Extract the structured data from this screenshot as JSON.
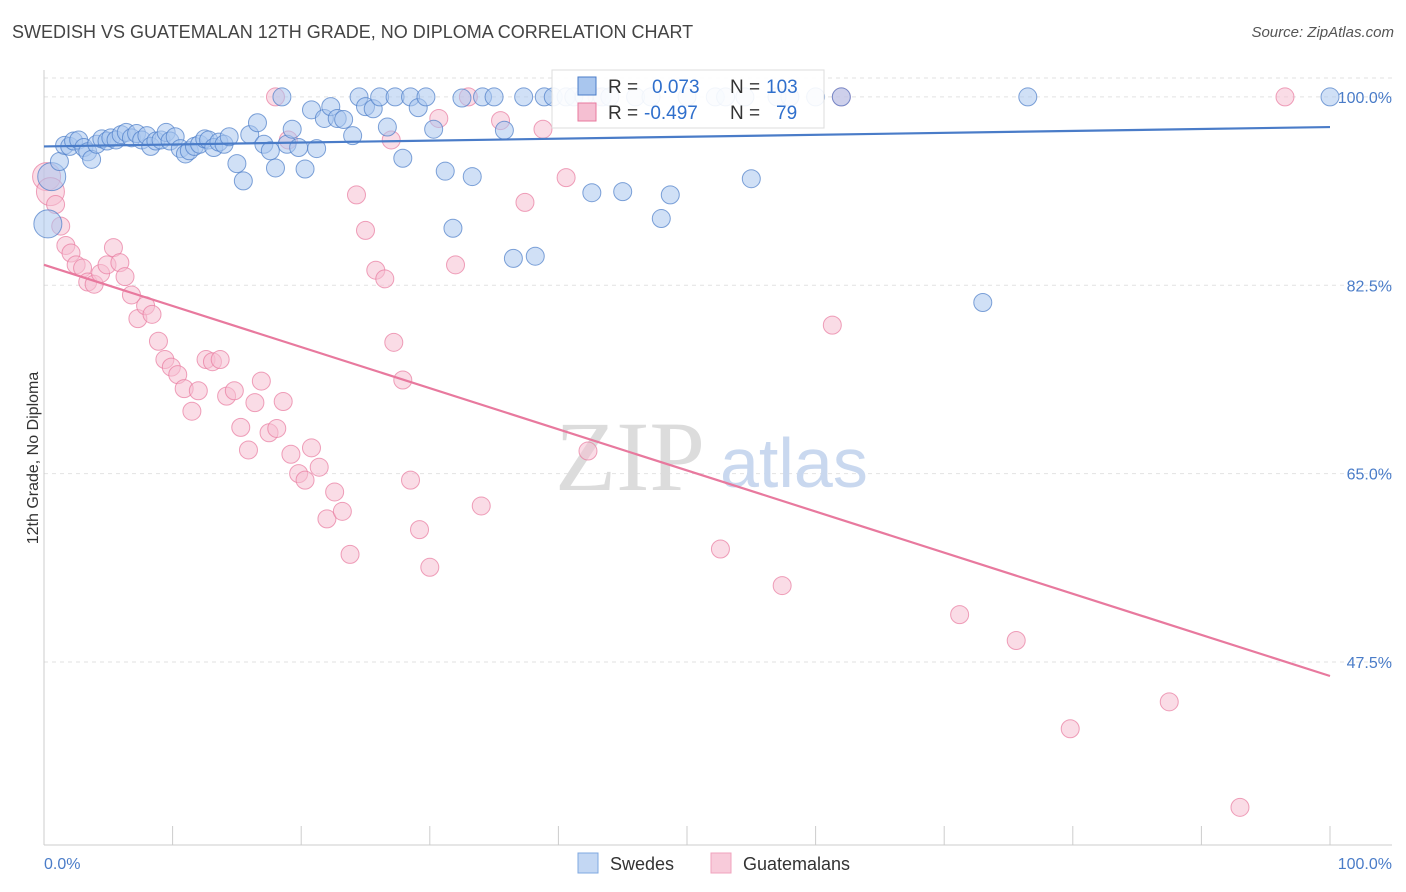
{
  "header": {
    "title": "SWEDISH VS GUATEMALAN 12TH GRADE, NO DIPLOMA CORRELATION CHART",
    "source": "Source: ZipAtlas.com"
  },
  "watermark": {
    "zip": "ZIP",
    "atlas": "atlas"
  },
  "stats_box": {
    "rows": [
      {
        "r_label": "R =",
        "r_value": "0.073",
        "n_label": "N =",
        "n_value": "103",
        "color": "#4a7cc8"
      },
      {
        "r_label": "R =",
        "r_value": "-0.497",
        "n_label": "N =",
        "n_value": "79",
        "color": "#e8799e"
      }
    ]
  },
  "legend": {
    "items": [
      {
        "label": "Swedes",
        "color": "#7fa8e0"
      },
      {
        "label": "Guatemalans",
        "color": "#f0a3bd"
      }
    ]
  },
  "chart_data": {
    "type": "scatter",
    "title": "SWEDISH VS GUATEMALAN 12TH GRADE, NO DIPLOMA CORRELATION CHART",
    "xlabel": "",
    "ylabel": "12th Grade, No Diploma",
    "xlim": [
      0,
      100
    ],
    "ylim": [
      30.5,
      102.5
    ],
    "x_tick_labels": [
      "0.0%",
      "100.0%"
    ],
    "y_ticks": [
      47.5,
      65.0,
      82.5,
      100.0
    ],
    "y_tick_labels": [
      "47.5%",
      "65.0%",
      "82.5%",
      "100.0%"
    ],
    "grid": true,
    "legend_position": "bottom-center",
    "series": [
      {
        "name": "Swedes",
        "color": "#4a7cc8",
        "fill": "#a9c6ee",
        "trend": {
          "x": [
            0,
            100
          ],
          "y": [
            95.4,
            97.2
          ]
        },
        "points": [
          [
            0.3,
            88.2
          ],
          [
            0.6,
            92.6
          ],
          [
            1.2,
            94.0
          ],
          [
            1.6,
            95.5
          ],
          [
            2.0,
            95.4
          ],
          [
            2.3,
            95.9
          ],
          [
            2.7,
            96.0
          ],
          [
            3.1,
            95.3
          ],
          [
            3.4,
            94.9
          ],
          [
            3.7,
            94.2
          ],
          [
            4.1,
            95.6
          ],
          [
            4.5,
            96.1
          ],
          [
            4.9,
            95.9
          ],
          [
            5.2,
            96.2
          ],
          [
            5.6,
            96.0
          ],
          [
            6.0,
            96.5
          ],
          [
            6.4,
            96.7
          ],
          [
            6.8,
            96.2
          ],
          [
            7.2,
            96.6
          ],
          [
            7.6,
            96.0
          ],
          [
            8.0,
            96.4
          ],
          [
            8.3,
            95.4
          ],
          [
            8.7,
            95.9
          ],
          [
            9.1,
            96.0
          ],
          [
            9.5,
            96.7
          ],
          [
            9.8,
            95.9
          ],
          [
            10.2,
            96.3
          ],
          [
            10.6,
            95.2
          ],
          [
            11.0,
            94.7
          ],
          [
            11.3,
            95.0
          ],
          [
            11.7,
            95.4
          ],
          [
            12.1,
            95.6
          ],
          [
            12.5,
            96.1
          ],
          [
            12.8,
            96.0
          ],
          [
            13.2,
            95.3
          ],
          [
            13.6,
            95.8
          ],
          [
            14.0,
            95.6
          ],
          [
            14.4,
            96.3
          ],
          [
            15.0,
            93.8
          ],
          [
            15.5,
            92.2
          ],
          [
            16.0,
            96.5
          ],
          [
            16.6,
            97.6
          ],
          [
            17.1,
            95.6
          ],
          [
            17.6,
            95.0
          ],
          [
            18.0,
            93.4
          ],
          [
            18.5,
            100.0
          ],
          [
            18.9,
            95.6
          ],
          [
            19.3,
            97.0
          ],
          [
            19.8,
            95.3
          ],
          [
            20.3,
            93.3
          ],
          [
            20.8,
            98.8
          ],
          [
            21.2,
            95.2
          ],
          [
            21.8,
            98.0
          ],
          [
            22.3,
            99.1
          ],
          [
            22.8,
            98.0
          ],
          [
            23.3,
            97.9
          ],
          [
            24.0,
            96.4
          ],
          [
            24.5,
            100.0
          ],
          [
            25.0,
            99.1
          ],
          [
            25.6,
            98.9
          ],
          [
            26.1,
            100.0
          ],
          [
            26.7,
            97.2
          ],
          [
            27.3,
            100.0
          ],
          [
            27.9,
            94.3
          ],
          [
            28.5,
            100.0
          ],
          [
            29.1,
            99.0
          ],
          [
            29.7,
            100.0
          ],
          [
            30.3,
            97.0
          ],
          [
            31.2,
            93.1
          ],
          [
            31.8,
            87.8
          ],
          [
            32.5,
            99.9
          ],
          [
            33.3,
            92.6
          ],
          [
            34.1,
            100.0
          ],
          [
            35.0,
            100.0
          ],
          [
            35.8,
            96.9
          ],
          [
            36.5,
            85.0
          ],
          [
            37.3,
            100.0
          ],
          [
            38.2,
            85.2
          ],
          [
            38.9,
            100.0
          ],
          [
            39.6,
            100.0
          ],
          [
            40.6,
            100.0
          ],
          [
            41.2,
            100.0
          ],
          [
            42.0,
            100.0
          ],
          [
            42.6,
            91.1
          ],
          [
            43.4,
            100.0
          ],
          [
            44.0,
            100.0
          ],
          [
            45.0,
            91.2
          ],
          [
            46.0,
            100.0
          ],
          [
            47.2,
            100.0
          ],
          [
            48.0,
            88.7
          ],
          [
            48.7,
            90.9
          ],
          [
            50.0,
            100.0
          ],
          [
            52.2,
            100.0
          ],
          [
            53.0,
            100.0
          ],
          [
            54.5,
            100.0
          ],
          [
            55.0,
            92.4
          ],
          [
            57.0,
            100.0
          ],
          [
            58.0,
            100.0
          ],
          [
            60.0,
            100.0
          ],
          [
            62.0,
            100.0
          ],
          [
            73.0,
            80.9
          ],
          [
            76.5,
            100.0
          ],
          [
            100.0,
            100.0
          ]
        ]
      },
      {
        "name": "Guatemalans",
        "color": "#e8799e",
        "fill": "#f5bfd2",
        "trend": {
          "x": [
            0,
            100
          ],
          "y": [
            84.4,
            46.2
          ]
        },
        "points": [
          [
            0.2,
            92.6
          ],
          [
            0.5,
            91.2
          ],
          [
            0.9,
            90.0
          ],
          [
            1.3,
            88.0
          ],
          [
            1.7,
            86.2
          ],
          [
            2.1,
            85.5
          ],
          [
            2.5,
            84.4
          ],
          [
            3.0,
            84.1
          ],
          [
            3.4,
            82.8
          ],
          [
            3.9,
            82.6
          ],
          [
            4.4,
            83.6
          ],
          [
            4.9,
            84.4
          ],
          [
            5.4,
            86.0
          ],
          [
            5.9,
            84.6
          ],
          [
            6.3,
            83.3
          ],
          [
            6.8,
            81.6
          ],
          [
            7.3,
            79.4
          ],
          [
            7.9,
            80.6
          ],
          [
            8.4,
            79.8
          ],
          [
            8.9,
            77.3
          ],
          [
            9.4,
            75.6
          ],
          [
            9.9,
            74.9
          ],
          [
            10.4,
            74.2
          ],
          [
            10.9,
            72.9
          ],
          [
            11.5,
            70.8
          ],
          [
            12.0,
            72.7
          ],
          [
            12.6,
            75.6
          ],
          [
            13.1,
            75.4
          ],
          [
            13.7,
            75.6
          ],
          [
            14.2,
            72.2
          ],
          [
            14.8,
            72.7
          ],
          [
            15.3,
            69.3
          ],
          [
            15.9,
            67.2
          ],
          [
            16.4,
            71.6
          ],
          [
            16.9,
            73.6
          ],
          [
            17.5,
            68.8
          ],
          [
            18.1,
            69.2
          ],
          [
            18.6,
            71.7
          ],
          [
            19.2,
            66.8
          ],
          [
            19.8,
            65.0
          ],
          [
            20.3,
            64.4
          ],
          [
            20.8,
            67.4
          ],
          [
            21.4,
            65.6
          ],
          [
            22.0,
            60.8
          ],
          [
            22.6,
            63.3
          ],
          [
            23.2,
            61.5
          ],
          [
            23.8,
            57.5
          ],
          [
            24.3,
            90.9
          ],
          [
            25.0,
            87.6
          ],
          [
            25.8,
            83.9
          ],
          [
            26.5,
            83.1
          ],
          [
            27.2,
            77.2
          ],
          [
            27.9,
            73.7
          ],
          [
            28.5,
            64.4
          ],
          [
            29.2,
            59.8
          ],
          [
            30.0,
            56.3
          ],
          [
            30.7,
            98.0
          ],
          [
            32.0,
            84.4
          ],
          [
            33.0,
            100.0
          ],
          [
            34.0,
            62.0
          ],
          [
            35.5,
            97.8
          ],
          [
            37.4,
            90.2
          ],
          [
            38.8,
            97.0
          ],
          [
            40.6,
            92.5
          ],
          [
            42.3,
            67.1
          ],
          [
            43.0,
            100.0
          ],
          [
            52.6,
            58.0
          ],
          [
            57.4,
            54.6
          ],
          [
            61.3,
            78.8
          ],
          [
            62.0,
            100.0
          ],
          [
            71.2,
            51.9
          ],
          [
            75.6,
            49.5
          ],
          [
            79.8,
            41.3
          ],
          [
            87.5,
            43.8
          ],
          [
            93.0,
            34.0
          ],
          [
            96.5,
            100.0
          ],
          [
            18.0,
            100.0
          ],
          [
            19.0,
            96.0
          ],
          [
            27.0,
            96.0
          ]
        ]
      }
    ]
  }
}
